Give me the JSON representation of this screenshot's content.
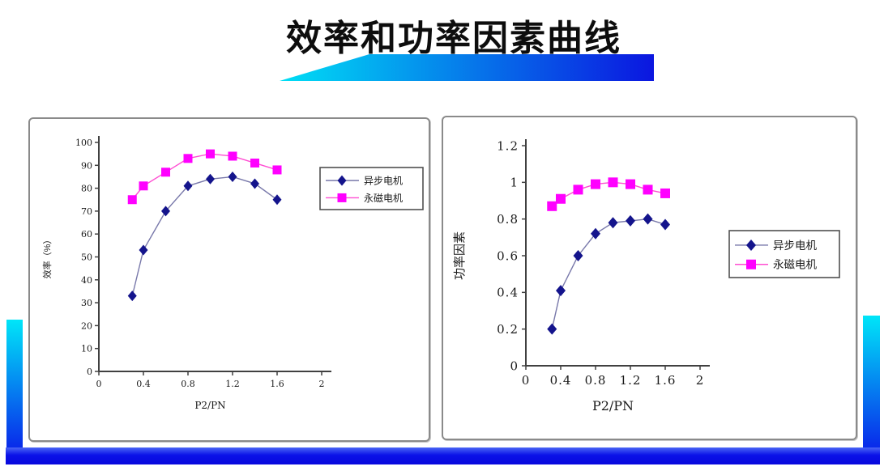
{
  "slide": {
    "title": "效率和功率因素曲线",
    "accent_colors": {
      "gradient_from": "#00dff5",
      "gradient_to": "#0b16e0",
      "bottom_bar": "#0a12e8"
    }
  },
  "chart_data": [
    {
      "type": "line",
      "title": "",
      "xlabel": "P2/PN",
      "ylabel": "效率（%）",
      "x": [
        0.3,
        0.4,
        0.6,
        0.8,
        1.0,
        1.2,
        1.4,
        1.6
      ],
      "series": [
        {
          "name": "异步电机",
          "marker": "diamond",
          "marker_color": "#14148c",
          "line_color": "#7878aa",
          "values": [
            33,
            53,
            70,
            81,
            84,
            85,
            82,
            75
          ]
        },
        {
          "name": "永磁电机",
          "marker": "square",
          "marker_color": "#ff00ff",
          "line_color": "#ff4dd2",
          "values": [
            75,
            81,
            87,
            93,
            95,
            94,
            91,
            88
          ]
        }
      ],
      "xlim": [
        0,
        2
      ],
      "ylim": [
        0,
        100
      ],
      "x_ticks": [
        0,
        0.4,
        0.8,
        1.2,
        1.6,
        2
      ],
      "x_tick_labels": [
        "0",
        "0.4",
        "0.8",
        "1.2",
        "1.6",
        "2"
      ],
      "y_ticks": [
        0,
        10,
        20,
        30,
        40,
        50,
        60,
        70,
        80,
        90,
        100
      ],
      "y_tick_labels": [
        "0",
        "10",
        "20",
        "30",
        "40",
        "50",
        "60",
        "70",
        "80",
        "90",
        "100"
      ],
      "grid": false,
      "legend_position": "right",
      "legend_text_color": "#8b3432"
    },
    {
      "type": "line",
      "title": "",
      "xlabel": "P2/PN",
      "ylabel": "功率因素",
      "x": [
        0.3,
        0.4,
        0.6,
        0.8,
        1.0,
        1.2,
        1.4,
        1.6
      ],
      "series": [
        {
          "name": "异步电机",
          "marker": "diamond",
          "marker_color": "#14148c",
          "line_color": "#7878aa",
          "values": [
            0.2,
            0.41,
            0.6,
            0.72,
            0.78,
            0.79,
            0.8,
            0.77
          ]
        },
        {
          "name": "永磁电机",
          "marker": "square",
          "marker_color": "#ff00ff",
          "line_color": "#ff4dd2",
          "values": [
            0.87,
            0.91,
            0.96,
            0.99,
            1.0,
            0.99,
            0.96,
            0.94
          ]
        }
      ],
      "xlim": [
        0,
        2
      ],
      "ylim": [
        0,
        1.2
      ],
      "x_ticks": [
        0,
        0.4,
        0.8,
        1.2,
        1.6,
        2
      ],
      "x_tick_labels": [
        "0",
        "0.4",
        "0.8",
        "1.2",
        "1.6",
        "2"
      ],
      "y_ticks": [
        0,
        0.2,
        0.4,
        0.6,
        0.8,
        1,
        1.2
      ],
      "y_tick_labels": [
        "0",
        "0.2",
        "0.4",
        "0.6",
        "0.8",
        "1",
        "1.2"
      ],
      "grid": false,
      "legend_position": "right",
      "legend_text_color": "#8b3432"
    }
  ]
}
